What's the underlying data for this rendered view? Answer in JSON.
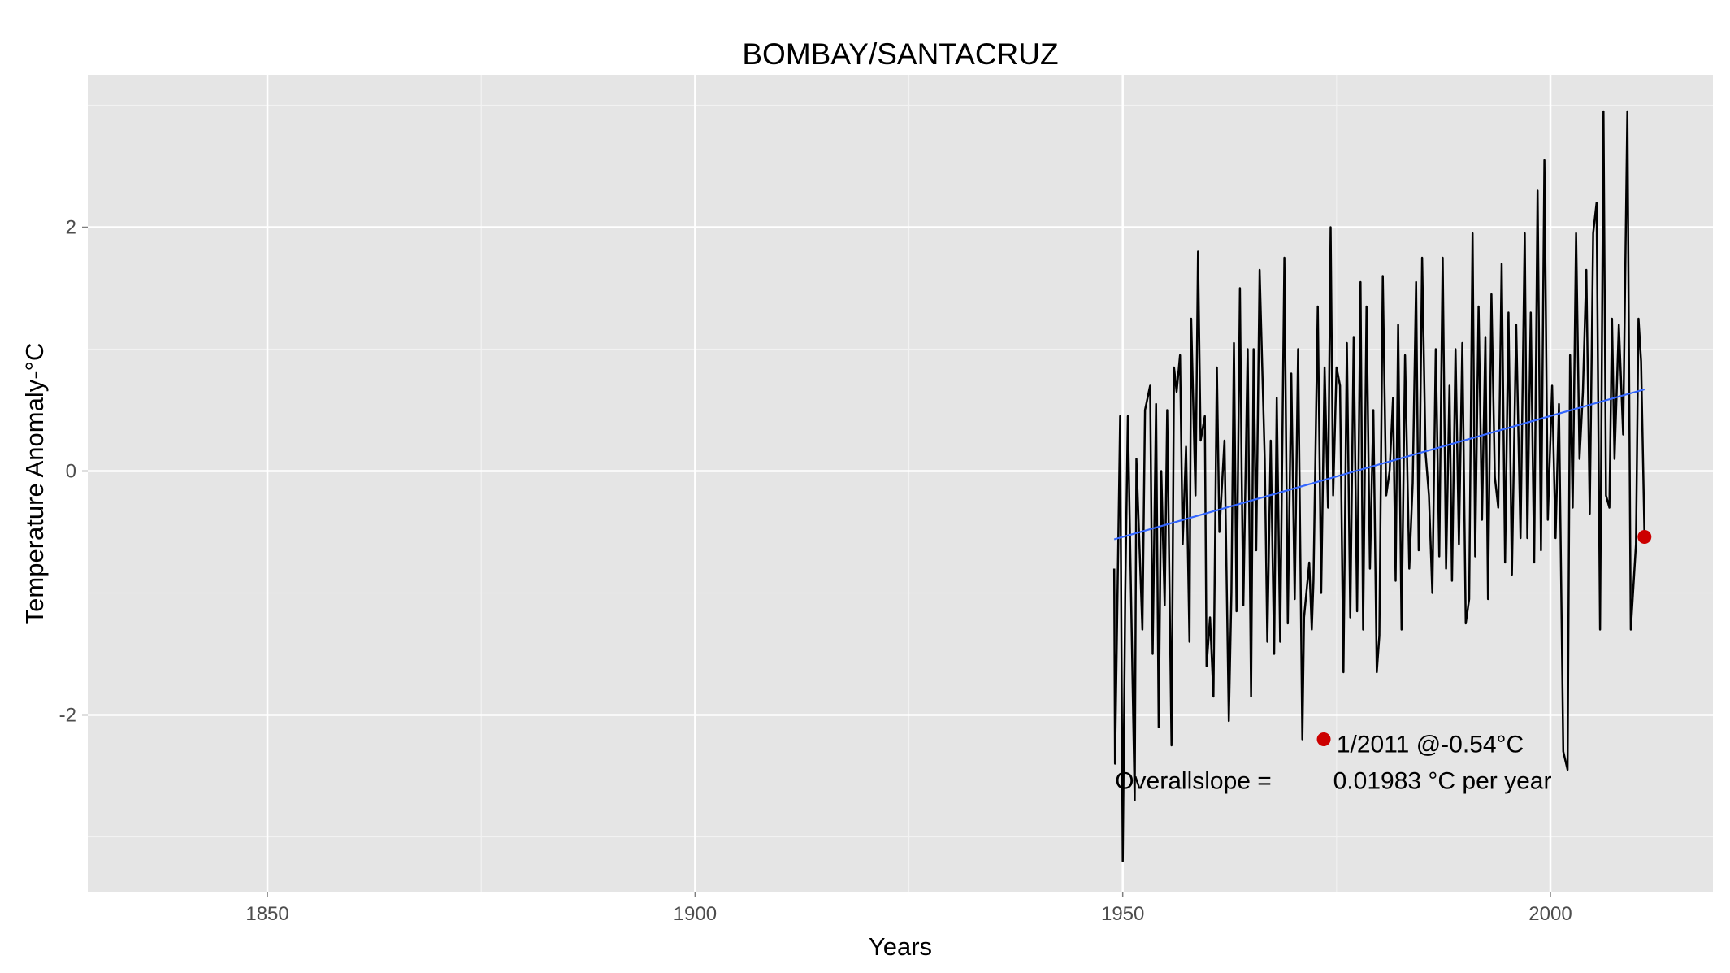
{
  "chart_data": {
    "type": "line",
    "title": "BOMBAY/SANTACRUZ",
    "xlabel": "Years",
    "ylabel": "Temperature Anomaly-°C",
    "xlim": [
      1829,
      2019
    ],
    "ylim": [
      -3.45,
      3.25
    ],
    "x_ticks": [
      1850,
      1900,
      1950,
      2000
    ],
    "x_tick_labels": [
      "1850",
      "1900",
      "1950",
      "2000"
    ],
    "x_minor_ticks": [
      1875,
      1925,
      1975
    ],
    "y_ticks": [
      -2,
      0,
      2
    ],
    "y_tick_labels": [
      "-2",
      "0",
      "2"
    ],
    "y_minor_ticks": [
      -3,
      -1,
      1,
      3
    ],
    "grid": true,
    "series": [
      {
        "color": "#000000",
        "points": [
          [
            1949.0,
            -0.8
          ],
          [
            1949.1,
            -2.4
          ],
          [
            1949.7,
            0.45
          ],
          [
            1950.0,
            -3.2
          ],
          [
            1950.3,
            -1.0
          ],
          [
            1950.6,
            0.45
          ],
          [
            1951.4,
            -2.7
          ],
          [
            1951.6,
            0.1
          ],
          [
            1952.3,
            -1.3
          ],
          [
            1952.6,
            0.5
          ],
          [
            1953.2,
            0.7
          ],
          [
            1953.5,
            -1.5
          ],
          [
            1953.9,
            0.55
          ],
          [
            1954.2,
            -2.1
          ],
          [
            1954.5,
            0.0
          ],
          [
            1954.9,
            -1.1
          ],
          [
            1955.2,
            0.5
          ],
          [
            1955.7,
            -2.25
          ],
          [
            1956.0,
            0.85
          ],
          [
            1956.3,
            0.65
          ],
          [
            1956.7,
            0.95
          ],
          [
            1957.0,
            -0.6
          ],
          [
            1957.4,
            0.2
          ],
          [
            1957.8,
            -1.4
          ],
          [
            1958.0,
            1.25
          ],
          [
            1958.5,
            -0.2
          ],
          [
            1958.8,
            1.8
          ],
          [
            1959.1,
            0.25
          ],
          [
            1959.6,
            0.45
          ],
          [
            1959.8,
            -1.6
          ],
          [
            1960.2,
            -1.2
          ],
          [
            1960.6,
            -1.85
          ],
          [
            1961.0,
            0.85
          ],
          [
            1961.3,
            -0.5
          ],
          [
            1961.9,
            0.25
          ],
          [
            1962.4,
            -2.05
          ],
          [
            1962.7,
            -1.0
          ],
          [
            1963.0,
            1.05
          ],
          [
            1963.3,
            -1.15
          ],
          [
            1963.7,
            1.5
          ],
          [
            1963.9,
            0.0
          ],
          [
            1964.1,
            -1.1
          ],
          [
            1964.6,
            1.0
          ],
          [
            1965.0,
            -1.85
          ],
          [
            1965.3,
            1.0
          ],
          [
            1965.6,
            -0.65
          ],
          [
            1966.0,
            1.65
          ],
          [
            1966.6,
            0.1
          ],
          [
            1966.9,
            -1.4
          ],
          [
            1967.3,
            0.25
          ],
          [
            1967.7,
            -1.5
          ],
          [
            1968.0,
            0.6
          ],
          [
            1968.4,
            -1.4
          ],
          [
            1968.9,
            1.75
          ],
          [
            1969.3,
            -1.25
          ],
          [
            1969.7,
            0.8
          ],
          [
            1970.1,
            -1.05
          ],
          [
            1970.5,
            1.0
          ],
          [
            1971.0,
            -2.2
          ],
          [
            1971.2,
            -1.2
          ],
          [
            1971.8,
            -0.75
          ],
          [
            1972.1,
            -1.3
          ],
          [
            1972.3,
            -0.9
          ],
          [
            1972.8,
            1.35
          ],
          [
            1973.2,
            -1.0
          ],
          [
            1973.6,
            0.85
          ],
          [
            1974.0,
            -0.3
          ],
          [
            1974.3,
            2.0
          ],
          [
            1974.6,
            -0.2
          ],
          [
            1975.0,
            0.85
          ],
          [
            1975.4,
            0.7
          ],
          [
            1975.8,
            -1.65
          ],
          [
            1976.2,
            1.05
          ],
          [
            1976.6,
            -1.2
          ],
          [
            1977.0,
            1.1
          ],
          [
            1977.4,
            -1.15
          ],
          [
            1977.8,
            1.55
          ],
          [
            1978.1,
            -1.3
          ],
          [
            1978.5,
            1.35
          ],
          [
            1978.9,
            -0.8
          ],
          [
            1979.3,
            0.5
          ],
          [
            1979.7,
            -1.65
          ],
          [
            1980.0,
            -1.35
          ],
          [
            1980.4,
            1.6
          ],
          [
            1980.8,
            -0.2
          ],
          [
            1981.2,
            0.0
          ],
          [
            1981.6,
            0.6
          ],
          [
            1981.9,
            -0.9
          ],
          [
            1982.2,
            1.2
          ],
          [
            1982.6,
            -1.3
          ],
          [
            1983.0,
            0.95
          ],
          [
            1983.5,
            -0.8
          ],
          [
            1983.9,
            -0.1
          ],
          [
            1984.3,
            1.55
          ],
          [
            1984.6,
            -0.65
          ],
          [
            1985.0,
            1.75
          ],
          [
            1985.4,
            0.15
          ],
          [
            1985.8,
            -0.2
          ],
          [
            1986.2,
            -1.0
          ],
          [
            1986.6,
            1.0
          ],
          [
            1987.0,
            -0.7
          ],
          [
            1987.4,
            1.75
          ],
          [
            1987.8,
            -0.8
          ],
          [
            1988.2,
            0.7
          ],
          [
            1988.5,
            -0.9
          ],
          [
            1988.9,
            1.0
          ],
          [
            1989.3,
            -0.6
          ],
          [
            1989.7,
            1.05
          ],
          [
            1990.1,
            -1.25
          ],
          [
            1990.5,
            -1.05
          ],
          [
            1990.9,
            1.95
          ],
          [
            1991.2,
            -0.7
          ],
          [
            1991.6,
            1.35
          ],
          [
            1992.0,
            -0.4
          ],
          [
            1992.4,
            1.1
          ],
          [
            1992.7,
            -1.05
          ],
          [
            1993.1,
            1.45
          ],
          [
            1993.5,
            -0.05
          ],
          [
            1993.9,
            -0.3
          ],
          [
            1994.3,
            1.7
          ],
          [
            1994.7,
            -0.75
          ],
          [
            1995.1,
            1.3
          ],
          [
            1995.5,
            -0.85
          ],
          [
            1996.0,
            1.2
          ],
          [
            1996.5,
            -0.55
          ],
          [
            1997.0,
            1.95
          ],
          [
            1997.3,
            -0.55
          ],
          [
            1997.7,
            1.3
          ],
          [
            1998.1,
            -0.75
          ],
          [
            1998.5,
            2.3
          ],
          [
            1998.9,
            -0.65
          ],
          [
            1999.3,
            2.55
          ],
          [
            1999.7,
            -0.4
          ],
          [
            2000.2,
            0.7
          ],
          [
            2000.6,
            -0.55
          ],
          [
            2001.0,
            0.55
          ],
          [
            2001.5,
            -2.3
          ],
          [
            2002.0,
            -2.45
          ],
          [
            2002.3,
            0.95
          ],
          [
            2002.6,
            -0.3
          ],
          [
            2003.0,
            1.95
          ],
          [
            2003.4,
            0.1
          ],
          [
            2003.8,
            0.65
          ],
          [
            2004.2,
            1.65
          ],
          [
            2004.6,
            -0.35
          ],
          [
            2005.0,
            1.95
          ],
          [
            2005.4,
            2.2
          ],
          [
            2005.8,
            -1.3
          ],
          [
            2006.2,
            2.95
          ],
          [
            2006.5,
            -0.2
          ],
          [
            2006.9,
            -0.3
          ],
          [
            2007.2,
            1.25
          ],
          [
            2007.5,
            0.1
          ],
          [
            2008.0,
            1.2
          ],
          [
            2008.5,
            0.3
          ],
          [
            2009.0,
            2.95
          ],
          [
            2009.4,
            -1.3
          ],
          [
            2010.0,
            -0.6
          ],
          [
            2010.3,
            1.25
          ],
          [
            2010.6,
            0.9
          ],
          [
            2011.0,
            -0.54
          ]
        ]
      },
      {
        "color": "#3366FF",
        "points": [
          [
            1949,
            -0.56
          ],
          [
            2011,
            0.67
          ]
        ]
      }
    ],
    "highlight_points": [
      {
        "x": 1973.5,
        "y": -2.2,
        "color": "#CC0000"
      },
      {
        "x": 2011.0,
        "y": -0.54,
        "color": "#CC0000"
      }
    ],
    "annotations": [
      {
        "text": "1/2011 @-0.54°C",
        "x": 1975,
        "y": -2.24
      },
      {
        "text": "Overallslope =",
        "x": 1949.1,
        "y": -2.54
      },
      {
        "text": "0.01983 °C per year",
        "x": 1974.6,
        "y": -2.54
      }
    ]
  }
}
